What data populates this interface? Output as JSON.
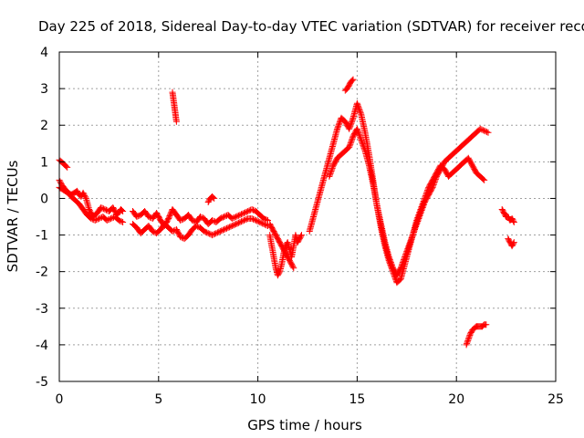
{
  "chart_data": {
    "type": "scatter",
    "title": "Day 225 of 2018, Sidereal Day-to-day VTEC variation (SDTVAR) for receiver reco",
    "xlabel": "GPS time / hours",
    "ylabel": "SDTVAR / TECUs",
    "xlim": [
      0,
      25
    ],
    "ylim": [
      -5,
      4
    ],
    "xticks": [
      0,
      5,
      10,
      15,
      20,
      25
    ],
    "yticks": [
      -5,
      -4,
      -3,
      -2,
      -1,
      0,
      1,
      2,
      3,
      4
    ],
    "grid": true,
    "marker": "plus",
    "colors": {
      "series": "#ff0000",
      "grid": "#a0a0a0",
      "axis": "#000000"
    },
    "series": [
      {
        "name": "SDTVAR",
        "segments": [
          {
            "x": [
              0.0,
              0.1,
              0.2,
              0.3,
              0.4
            ],
            "y": [
              1.05,
              1.0,
              0.95,
              0.9,
              0.85
            ]
          },
          {
            "x": [
              0.0,
              0.15,
              0.3,
              0.45,
              0.6,
              0.75,
              0.9,
              1.0,
              1.1,
              1.2,
              1.35,
              1.5,
              1.7,
              1.9,
              2.1,
              2.3,
              2.5,
              2.7,
              2.9,
              3.1,
              3.2
            ],
            "y": [
              0.5,
              0.35,
              0.25,
              0.15,
              0.1,
              0.15,
              0.2,
              0.1,
              0.05,
              0.15,
              0.0,
              -0.3,
              -0.5,
              -0.4,
              -0.25,
              -0.3,
              -0.35,
              -0.25,
              -0.45,
              -0.3,
              -0.35
            ]
          },
          {
            "x": [
              0.0,
              0.15,
              0.3,
              0.45,
              0.6,
              0.8,
              1.0,
              1.2,
              1.4,
              1.6,
              1.8,
              2.0,
              2.2,
              2.4,
              2.6,
              2.8,
              3.0,
              3.2
            ],
            "y": [
              0.3,
              0.25,
              0.2,
              0.15,
              0.05,
              -0.05,
              -0.15,
              -0.3,
              -0.45,
              -0.55,
              -0.6,
              -0.55,
              -0.5,
              -0.6,
              -0.55,
              -0.5,
              -0.6,
              -0.65
            ]
          },
          {
            "x": [
              3.7,
              3.9,
              4.1,
              4.3,
              4.5,
              4.7,
              4.9,
              5.1,
              5.3,
              5.5,
              5.7,
              5.9,
              6.1,
              6.3,
              6.5,
              6.7,
              6.9,
              7.1,
              7.3,
              7.5,
              7.7,
              7.9,
              8.1,
              8.3,
              8.5,
              8.7,
              8.9,
              9.1,
              9.3,
              9.5,
              9.7,
              9.9,
              10.1,
              10.3,
              10.5
            ],
            "y": [
              -0.35,
              -0.5,
              -0.45,
              -0.35,
              -0.5,
              -0.55,
              -0.4,
              -0.6,
              -0.75,
              -0.55,
              -0.3,
              -0.45,
              -0.6,
              -0.55,
              -0.45,
              -0.6,
              -0.65,
              -0.5,
              -0.55,
              -0.7,
              -0.6,
              -0.65,
              -0.55,
              -0.5,
              -0.45,
              -0.55,
              -0.5,
              -0.45,
              -0.4,
              -0.35,
              -0.3,
              -0.35,
              -0.45,
              -0.55,
              -0.6
            ]
          },
          {
            "x": [
              3.7,
              3.9,
              4.1,
              4.3,
              4.5,
              4.7,
              4.9,
              5.1,
              5.3,
              5.5,
              5.7,
              5.9,
              6.1,
              6.3,
              6.5,
              6.7,
              6.9,
              7.1,
              7.3,
              7.5,
              7.7,
              7.9,
              8.1,
              8.3,
              8.5,
              8.7,
              8.9,
              9.1,
              9.3,
              9.5,
              9.7,
              9.9,
              10.1,
              10.3,
              10.5
            ],
            "y": [
              -0.7,
              -0.8,
              -0.95,
              -0.85,
              -0.75,
              -0.9,
              -0.95,
              -0.85,
              -0.7,
              -0.8,
              -0.9,
              -0.85,
              -1.05,
              -1.1,
              -1.0,
              -0.85,
              -0.75,
              -0.8,
              -0.9,
              -0.95,
              -1.0,
              -0.95,
              -0.9,
              -0.85,
              -0.8,
              -0.75,
              -0.7,
              -0.65,
              -0.6,
              -0.55,
              -0.55,
              -0.6,
              -0.65,
              -0.7,
              -0.75
            ]
          },
          {
            "x": [
              5.7,
              5.75,
              5.8,
              5.85,
              5.9
            ],
            "y": [
              2.9,
              2.7,
              2.5,
              2.3,
              2.1
            ]
          },
          {
            "x": [
              7.5,
              7.6,
              7.7,
              7.8
            ],
            "y": [
              -0.1,
              0.0,
              0.05,
              0.0
            ]
          },
          {
            "x": [
              10.6,
              10.7,
              10.8,
              10.9,
              11.0,
              11.1,
              11.2,
              11.3,
              11.4,
              11.5,
              11.6,
              11.7,
              11.8,
              11.9,
              12.0,
              12.1,
              12.2
            ],
            "y": [
              -1.0,
              -1.3,
              -1.6,
              -1.9,
              -2.1,
              -2.0,
              -1.8,
              -1.5,
              -1.3,
              -1.2,
              -1.4,
              -1.6,
              -1.3,
              -1.0,
              -1.2,
              -1.1,
              -1.0
            ]
          },
          {
            "x": [
              10.6,
              10.8,
              11.0,
              11.2,
              11.4,
              11.6,
              11.8
            ],
            "y": [
              -0.7,
              -0.9,
              -1.1,
              -1.3,
              -1.5,
              -1.7,
              -1.9
            ]
          },
          {
            "x": [
              12.6,
              12.8,
              13.0,
              13.2,
              13.4,
              13.6,
              13.8,
              14.0,
              14.2,
              14.4,
              14.6,
              14.8,
              15.0,
              15.2,
              15.4,
              15.6,
              15.8,
              16.0,
              16.2,
              16.4,
              16.6,
              16.8,
              17.0,
              17.2,
              17.4,
              17.6,
              17.8,
              18.0,
              18.2,
              18.4,
              18.6,
              18.8,
              19.0,
              19.2,
              19.4,
              19.6,
              19.8,
              20.0,
              20.2,
              20.4,
              20.6,
              20.8,
              21.0,
              21.2,
              21.4,
              21.6
            ],
            "y": [
              -0.9,
              -0.5,
              -0.1,
              0.3,
              0.7,
              1.1,
              1.5,
              1.9,
              2.2,
              2.1,
              1.9,
              2.2,
              2.6,
              2.3,
              1.8,
              1.2,
              0.5,
              -0.2,
              -0.8,
              -1.3,
              -1.7,
              -2.0,
              -2.3,
              -2.2,
              -1.8,
              -1.4,
              -1.0,
              -0.7,
              -0.4,
              -0.1,
              0.1,
              0.3,
              0.6,
              0.8,
              1.0,
              1.1,
              1.2,
              1.3,
              1.4,
              1.5,
              1.6,
              1.7,
              1.8,
              1.9,
              1.85,
              1.8
            ]
          },
          {
            "x": [
              13.6,
              13.8,
              14.0,
              14.2,
              14.4,
              14.6,
              14.8,
              15.0,
              15.2,
              15.4,
              15.6,
              15.8,
              16.0,
              16.2,
              16.4,
              16.6,
              16.8,
              17.0,
              17.2,
              17.4,
              17.6,
              17.8,
              18.0,
              18.2,
              18.4,
              18.6,
              18.8,
              19.0,
              19.2,
              19.4,
              19.6,
              19.8,
              20.0,
              20.2,
              20.4,
              20.6,
              20.8,
              21.0,
              21.2,
              21.4
            ],
            "y": [
              0.6,
              0.9,
              1.1,
              1.2,
              1.3,
              1.4,
              1.7,
              1.9,
              1.6,
              1.3,
              0.9,
              0.4,
              -0.2,
              -0.7,
              -1.2,
              -1.6,
              -1.9,
              -2.1,
              -1.9,
              -1.6,
              -1.3,
              -1.0,
              -0.6,
              -0.3,
              0.0,
              0.3,
              0.5,
              0.7,
              0.9,
              0.8,
              0.6,
              0.7,
              0.8,
              0.9,
              1.0,
              1.1,
              0.9,
              0.7,
              0.6,
              0.5
            ]
          },
          {
            "x": [
              14.4,
              14.5,
              14.6,
              14.7,
              14.8
            ],
            "y": [
              2.95,
              3.0,
              3.1,
              3.2,
              3.25
            ]
          },
          {
            "x": [
              20.5,
              20.6,
              20.7,
              20.8,
              20.9,
              21.0,
              21.1,
              21.2,
              21.3,
              21.4,
              21.5
            ],
            "y": [
              -4.0,
              -3.85,
              -3.7,
              -3.6,
              -3.55,
              -3.5,
              -3.5,
              -3.5,
              -3.5,
              -3.45,
              -3.45
            ]
          },
          {
            "x": [
              22.3,
              22.4,
              22.5,
              22.6,
              22.7,
              22.8,
              22.9
            ],
            "y": [
              -0.3,
              -0.4,
              -0.5,
              -0.5,
              -0.6,
              -0.55,
              -0.65
            ]
          },
          {
            "x": [
              22.6,
              22.7,
              22.8,
              22.9
            ],
            "y": [
              -1.1,
              -1.2,
              -1.3,
              -1.2
            ]
          }
        ]
      }
    ]
  }
}
